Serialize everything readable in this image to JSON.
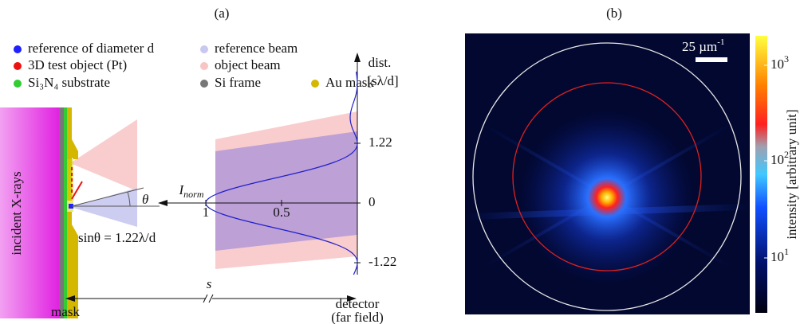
{
  "panels": {
    "a": "(a)",
    "b": "(b)"
  },
  "legend": [
    {
      "label": "reference of diameter d",
      "color": "#1f1fff"
    },
    {
      "label": "3D test object (Pt)",
      "color": "#ee1111"
    },
    {
      "label": "Si₃N₄ substrate",
      "color": "#33cc33"
    },
    {
      "label": "reference beam",
      "color": "#c8c8f0"
    },
    {
      "label": "object beam",
      "color": "#f8c4c4"
    },
    {
      "label": "Si frame",
      "color": "#777777"
    },
    {
      "label": "Au mask",
      "color": "#d4b800"
    }
  ],
  "diagram": {
    "incident": "incident X-rays",
    "theta": "θ",
    "formula": "sinθ = 1.22λ/d",
    "axis_title": "dist.",
    "axis_unit": "[sλ/d]",
    "intensity_label": {
      "main": "I",
      "sub": "norm"
    },
    "yticks": [
      1.22,
      0,
      -1.22
    ],
    "xticks": [
      1,
      0.5
    ],
    "distance": "s",
    "mask": "mask",
    "detector": "detector",
    "detector_note": "(far field)"
  },
  "image": {
    "scale_bar": {
      "text": "25 µm",
      "exp": "-1"
    },
    "colorbar": {
      "label": "intensity [arbitrary unit]",
      "ticks": [
        {
          "base": "10",
          "exp": "3"
        },
        {
          "base": "10",
          "exp": "2"
        },
        {
          "base": "10",
          "exp": "1"
        }
      ]
    }
  }
}
